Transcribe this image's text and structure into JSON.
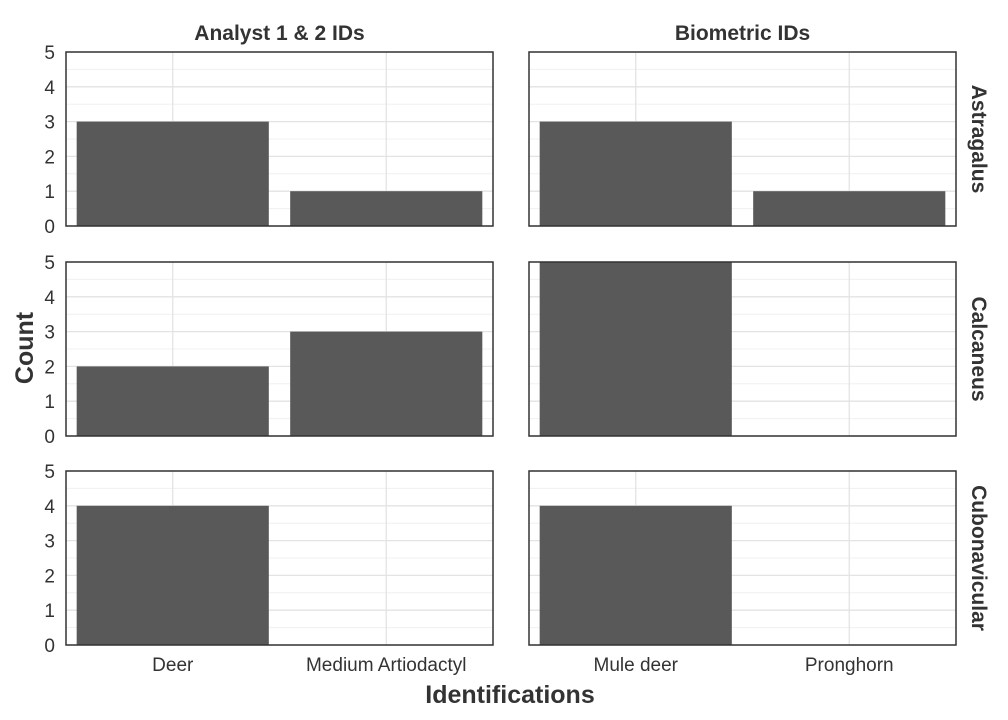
{
  "chart_data": {
    "type": "bar",
    "xlabel": "Identifications",
    "ylabel": "Count",
    "ylim": [
      0,
      5
    ],
    "y_ticks": [
      "0",
      "1",
      "2",
      "3",
      "4",
      "5"
    ],
    "grid": true,
    "legend": "none",
    "facet_columns": [
      {
        "label": "Analyst 1 & 2 IDs",
        "categories": [
          "Deer",
          "Medium Artiodactyl"
        ]
      },
      {
        "label": "Biometric IDs",
        "categories": [
          "Mule deer",
          "Pronghorn"
        ]
      }
    ],
    "facet_rows": [
      "Astragalus",
      "Calcaneus",
      "Cubonavicular"
    ],
    "panels": [
      {
        "row": "Astragalus",
        "column": "Analyst 1 & 2 IDs",
        "values": [
          3,
          1
        ]
      },
      {
        "row": "Astragalus",
        "column": "Biometric IDs",
        "values": [
          3,
          1
        ]
      },
      {
        "row": "Calcaneus",
        "column": "Analyst 1 & 2 IDs",
        "values": [
          2,
          3
        ]
      },
      {
        "row": "Calcaneus",
        "column": "Biometric IDs",
        "values": [
          5,
          0
        ]
      },
      {
        "row": "Cubonavicular",
        "column": "Analyst 1 & 2 IDs",
        "values": [
          4,
          0
        ]
      },
      {
        "row": "Cubonavicular",
        "column": "Biometric IDs",
        "values": [
          4,
          0
        ]
      }
    ],
    "colors": {
      "bar": "#595959",
      "grid_major": "#e3e3e3",
      "grid_minor": "#f0f0f0",
      "border": "#333333",
      "text": "#333333"
    }
  }
}
